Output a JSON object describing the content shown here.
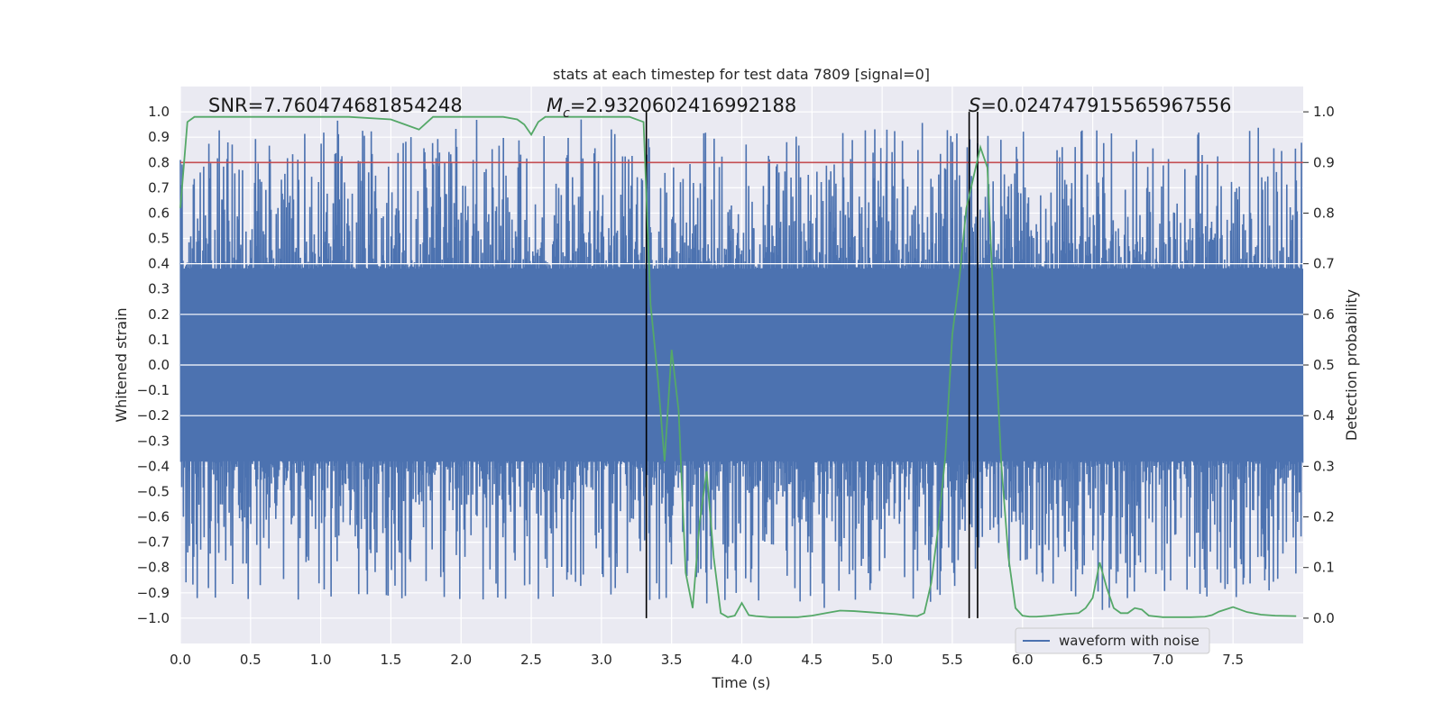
{
  "chart_data": {
    "type": "line",
    "title": "stats at each timestep for test data 7809 [signal=0]",
    "xlabel": "Time (s)",
    "ylabel": "Whitened strain",
    "ylabel_right": "Detection probability",
    "xlim": [
      0.0,
      8.0
    ],
    "ylim": [
      -1.1,
      1.1
    ],
    "ylim_right": [
      -0.05,
      1.05
    ],
    "grid": true,
    "x_ticks": [
      "0.0",
      "0.5",
      "1.0",
      "1.5",
      "2.0",
      "2.5",
      "3.0",
      "3.5",
      "4.0",
      "4.5",
      "5.0",
      "5.5",
      "6.0",
      "6.5",
      "7.0",
      "7.5"
    ],
    "y_ticks": [
      "1.0",
      "0.9",
      "0.8",
      "0.7",
      "0.6",
      "0.5",
      "0.4",
      "0.3",
      "0.2",
      "0.1",
      "0.0",
      "−0.1",
      "−0.2",
      "−0.3",
      "−0.4",
      "−0.5",
      "−0.6",
      "−0.7",
      "−0.8",
      "−0.9",
      "−1.0"
    ],
    "y_ticks_right": [
      "1.0",
      "0.9",
      "0.8",
      "0.7",
      "0.6",
      "0.5",
      "0.4",
      "0.3",
      "0.2",
      "0.1",
      "0.0"
    ],
    "annotations": {
      "snr": "SNR=7.760474681854248",
      "mc_symbol": "M",
      "mc_sub": "c",
      "mc_value": "=2.9320602416992188",
      "s_symbol": "S",
      "s_value": "=0.024747915565967556"
    },
    "legend": {
      "placement": "bottom-right",
      "entries": [
        "waveform with noise"
      ]
    },
    "colors": {
      "strain": "#4c72b0",
      "probability": "#55a868",
      "threshold": "#c44e52",
      "markers": "#000000",
      "background": "#eaeaf2",
      "grid": "#ffffff"
    },
    "series": [
      {
        "name": "waveform with noise",
        "axis": "left",
        "note_values": "dense noisy strain, envelope approx ±0.4 to ±0.95",
        "x_range": [
          0.0,
          8.0
        ],
        "envelope_min": -0.95,
        "envelope_max": 0.97
      },
      {
        "axis": "right",
        "x": [
          0.0,
          0.05,
          0.1,
          0.2,
          0.5,
          1.0,
          1.2,
          1.5,
          1.6,
          1.7,
          1.8,
          2.0,
          2.3,
          2.4,
          2.45,
          2.5,
          2.55,
          2.6,
          2.65,
          2.7,
          3.0,
          3.2,
          3.3,
          3.35,
          3.4,
          3.45,
          3.5,
          3.55,
          3.6,
          3.65,
          3.7,
          3.75,
          3.8,
          3.85,
          3.9,
          3.95,
          4.0,
          4.05,
          4.1,
          4.2,
          4.3,
          4.4,
          4.5,
          4.6,
          4.7,
          4.8,
          4.9,
          5.0,
          5.1,
          5.2,
          5.25,
          5.3,
          5.35,
          5.4,
          5.45,
          5.5,
          5.55,
          5.6,
          5.65,
          5.7,
          5.75,
          5.8,
          5.85,
          5.9,
          5.95,
          6.0,
          6.05,
          6.1,
          6.2,
          6.3,
          6.4,
          6.45,
          6.5,
          6.55,
          6.6,
          6.65,
          6.7,
          6.75,
          6.8,
          6.85,
          6.9,
          7.0,
          7.1,
          7.2,
          7.3,
          7.35,
          7.4,
          7.5,
          7.6,
          7.7,
          7.8,
          7.95
        ],
        "values": [
          0.81,
          0.98,
          0.99,
          0.99,
          0.99,
          0.99,
          0.99,
          0.985,
          0.975,
          0.965,
          0.99,
          0.99,
          0.99,
          0.985,
          0.975,
          0.955,
          0.98,
          0.99,
          0.99,
          0.99,
          0.99,
          0.99,
          0.98,
          0.62,
          0.48,
          0.31,
          0.53,
          0.41,
          0.09,
          0.02,
          0.19,
          0.29,
          0.12,
          0.01,
          0.002,
          0.005,
          0.03,
          0.006,
          0.004,
          0.002,
          0.002,
          0.002,
          0.005,
          0.01,
          0.015,
          0.014,
          0.012,
          0.01,
          0.008,
          0.005,
          0.004,
          0.01,
          0.07,
          0.18,
          0.32,
          0.56,
          0.67,
          0.81,
          0.87,
          0.93,
          0.89,
          0.58,
          0.3,
          0.12,
          0.02,
          0.005,
          0.003,
          0.003,
          0.005,
          0.008,
          0.01,
          0.02,
          0.04,
          0.11,
          0.06,
          0.02,
          0.01,
          0.01,
          0.02,
          0.017,
          0.005,
          0.002,
          0.002,
          0.002,
          0.003,
          0.006,
          0.013,
          0.022,
          0.012,
          0.007,
          0.005,
          0.004
        ]
      }
    ],
    "hlines": [
      {
        "axis": "right",
        "value": 0.9
      }
    ],
    "vlines": [
      3.32,
      5.62,
      5.68
    ]
  }
}
